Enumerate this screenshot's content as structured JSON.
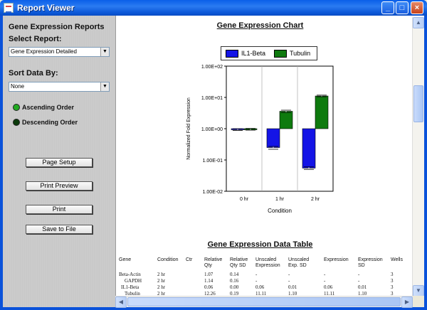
{
  "window": {
    "title": "Report Viewer",
    "minimize_icon": "minimize-icon",
    "maximize_icon": "maximize-icon",
    "close_icon": "close-icon"
  },
  "sidebar": {
    "heading": "Gene Expression Reports",
    "select_report_label": "Select Report:",
    "select_report_value": "Gene Expression Detailed",
    "sort_label": "Sort Data By:",
    "sort_value": "None",
    "ascending_label": "Ascending Order",
    "descending_label": "Descending Order",
    "ascending_color": "#22aa22",
    "descending_color": "#0a3a0a",
    "buttons": [
      "Page Setup",
      "Print Preview",
      "Print",
      "Save to File"
    ]
  },
  "report": {
    "chart_title": "Gene Expression Chart",
    "table_title": "Gene Expression Data Table"
  },
  "chart_data": {
    "type": "bar",
    "title": "Gene Expression Chart",
    "xlabel": "Condition",
    "ylabel": "Normalized Fold Expression",
    "yscale": "log",
    "ylim": [
      0.01,
      100
    ],
    "yticks": [
      "1.00E+02",
      "1.00E+01",
      "1.00E+00",
      "1.00E-01",
      "1.00E-02"
    ],
    "categories": [
      "0 hr",
      "1 hr",
      "2 hr"
    ],
    "legend_position": "top",
    "series": [
      {
        "name": "IL1-Beta",
        "color": "#1414e6",
        "values": [
          0.94,
          0.25,
          0.055
        ],
        "errors": [
          [
            0.88,
            1.0
          ],
          [
            0.22,
            0.27
          ],
          [
            0.05,
            0.06
          ]
        ]
      },
      {
        "name": "Tubulin",
        "color": "#0e7a0e",
        "values": [
          0.96,
          3.6,
          11.1
        ],
        "errors": [
          [
            0.9,
            1.02
          ],
          [
            3.3,
            3.9
          ],
          [
            10.5,
            11.8
          ]
        ]
      }
    ]
  },
  "table": {
    "headers": [
      [
        "Gene"
      ],
      [
        "Condition"
      ],
      [
        "Ctr"
      ],
      [
        "Relative",
        "Qty"
      ],
      [
        "Relative",
        "Qty SD"
      ],
      [
        "Unscaled",
        "Expression"
      ],
      [
        "Unscaled",
        "Exp. SD"
      ],
      [
        "Expression"
      ],
      [
        "Expression",
        "SD"
      ],
      [
        "Wells"
      ]
    ],
    "rows": [
      [
        "Beta-Actin",
        "2 hr",
        "",
        "1.07",
        "0.14",
        "-",
        "-",
        "-",
        "-",
        "3"
      ],
      [
        "GAPDH",
        "2 hr",
        "",
        "1.14",
        "0.16",
        "-",
        "-",
        "-",
        "-",
        "3"
      ],
      [
        "IL1-Beta",
        "2 hr",
        "",
        "0.06",
        "0.00",
        "0.06",
        "0.01",
        "0.06",
        "0.01",
        "3"
      ],
      [
        "Tubulin",
        "2 hr",
        "",
        "12.26",
        "0.19",
        "11.11",
        "1.10",
        "11.11",
        "1.10",
        "3"
      ]
    ]
  }
}
